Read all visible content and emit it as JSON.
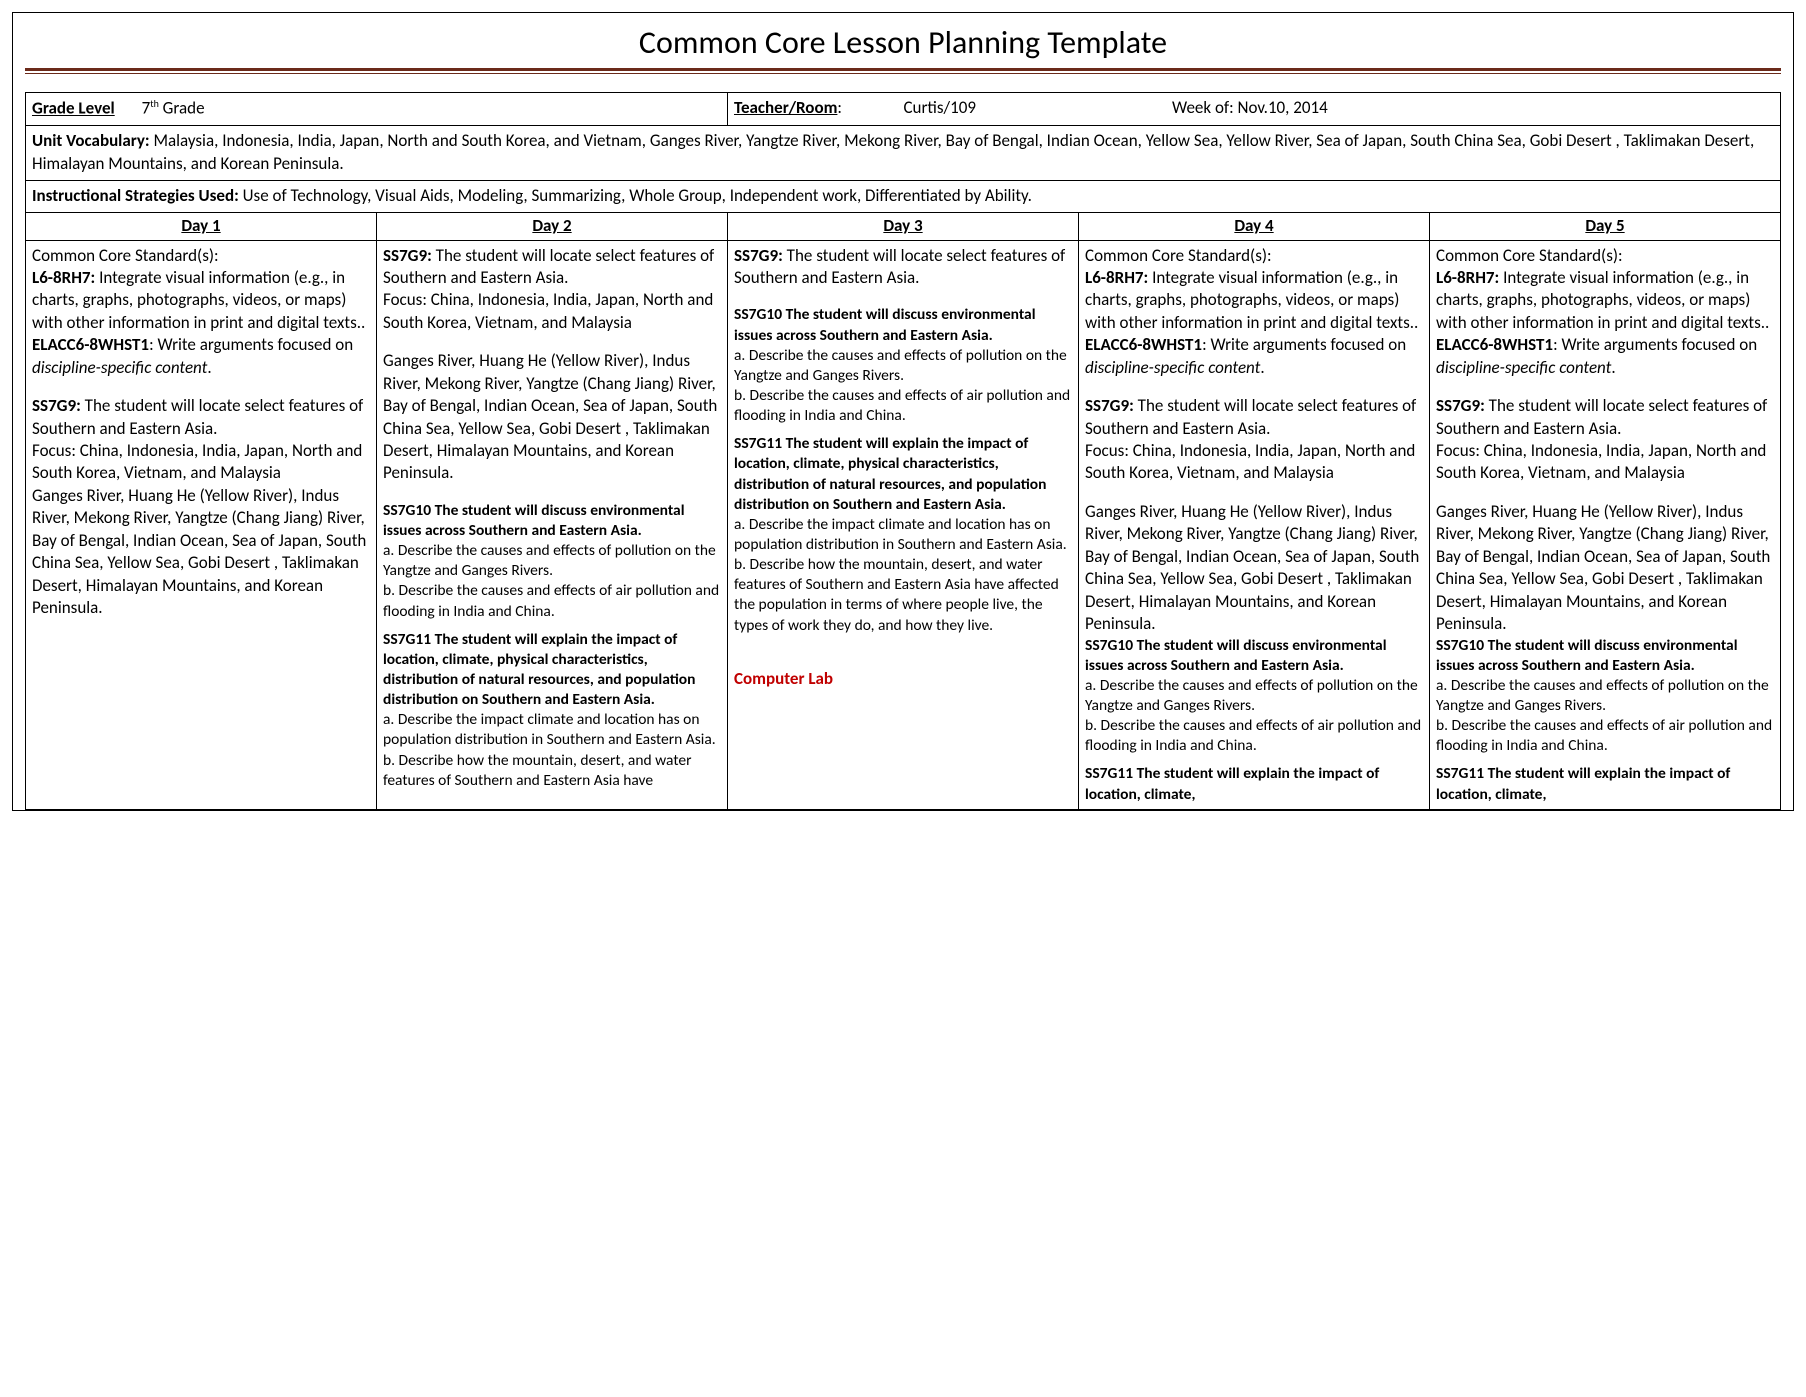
{
  "title": "Common Core Lesson Planning Template",
  "header": {
    "grade_label": "Grade Level",
    "grade_value_pre": "7",
    "grade_value_sup": "th",
    "grade_value_post": " Grade",
    "teacher_label": "Teacher/Room",
    "teacher_value": "Curtis/109",
    "week_value": "Week of: Nov.10, 2014"
  },
  "vocab": {
    "label": "Unit Vocabulary:",
    "text": " Malaysia,  Indonesia, India, Japan, North and South Korea, and  Vietnam, Ganges River, Yangtze River, Mekong River, Bay of Bengal, Indian Ocean, Yellow Sea, Yellow River, Sea of Japan, South China Sea, Gobi Desert , Taklimakan Desert, Himalayan Mountains, and Korean Peninsula."
  },
  "strategies": {
    "label": "Instructional Strategies Used:",
    "text": "   Use of Technology, Visual Aids, Modeling, Summarizing, Whole Group, Independent work, Differentiated by Ability."
  },
  "days": {
    "d1": "Day 1",
    "d2": "Day 2",
    "d3": "Day 3",
    "d4": "Day 4",
    "d5": "Day 5"
  },
  "txt": {
    "ccs_label": "Common Core Standard(s):",
    "l68rh7_code": "L6-8RH7:",
    "l68rh7_text": " Integrate visual information (e.g., in charts, graphs, photographs, videos, or maps) with other information in print and digital texts..",
    "elacc_code": "ELACC6-8WHST1",
    "elacc_text_pre": ": Write arguments focused on ",
    "elacc_text_it": "discipline-specific content",
    "period": ".",
    "ss7g9_code": "SS7G9:",
    "ss7g9_text": " The student will locate select features of Southern and Eastern Asia.",
    "focus": "Focus: China, Indonesia, India, Japan, North and South Korea, Vietnam, and Malaysia",
    "features": "Ganges River, Huang He (Yellow River), Indus River, Mekong River, Yangtze (Chang Jiang) River, Bay of Bengal, Indian Ocean, Sea of Japan, South China Sea, Yellow Sea, Gobi Desert , Taklimakan Desert, Himalayan Mountains, and Korean Peninsula.",
    "ss7g10_bold": "SS7G10 The student will discuss environmental issues across Southern and Eastern Asia.",
    "ss7g10_a": "a. Describe the causes and effects of pollution on the Yangtze and Ganges Rivers.",
    "ss7g10_b": "b. Describe the causes and effects of air pollution and flooding in India and China.",
    "ss7g11_bold": "SS7G11 The student will explain the impact of location, climate, physical characteristics, distribution of natural resources, and population distribution on Southern and Eastern Asia.",
    "ss7g11_a": "a. Describe the impact climate and location has on population distribution in Southern and Eastern Asia.",
    "ss7g11_b": "b. Describe how the mountain, desert, and water features of Southern and Eastern Asia have affected the population in terms of where people live, the types of work they do, and how they live.",
    "ss7g11_b_cut": "b. Describe how the mountain, desert, and water features of Southern and Eastern Asia have",
    "ss7g11_bold_cut": "SS7G11 The student will explain the impact of location, climate,",
    "computer_lab": "Computer Lab"
  }
}
